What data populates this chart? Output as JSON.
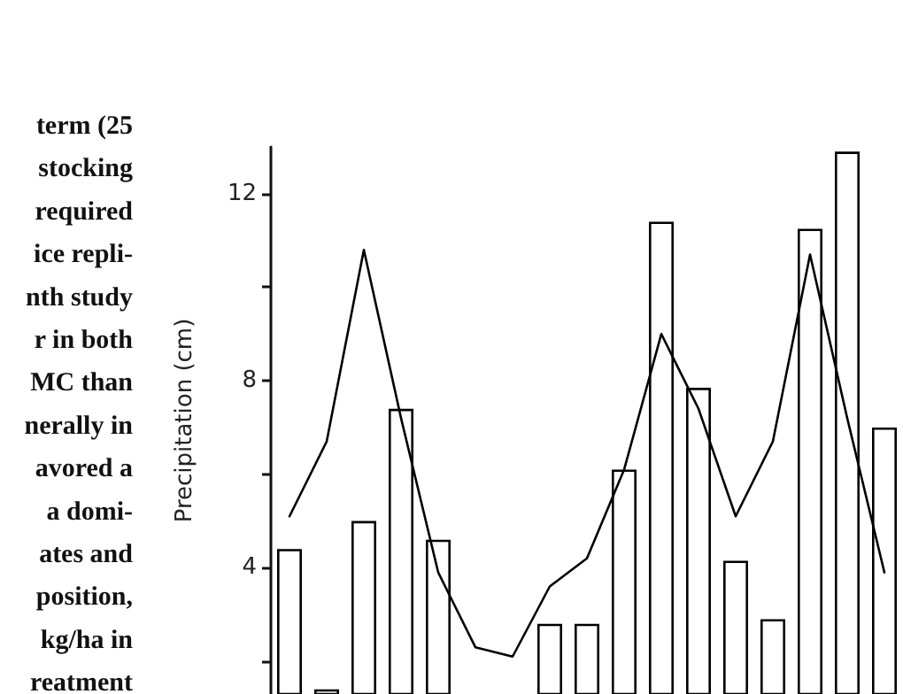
{
  "chart_data": {
    "type": "bar",
    "ylabel": "Precipitation (cm)",
    "categories": [
      null,
      null,
      null,
      null,
      null,
      null,
      null,
      null,
      null,
      null,
      null,
      null,
      null,
      null,
      null,
      null,
      null
    ],
    "series": [
      {
        "color": "#000000",
        "values": [
          4.4,
          1.4,
          5.0,
          7.4,
          4.6,
          null,
          null,
          2.8,
          2.8,
          6.1,
          11.4,
          7.85,
          4.15,
          2.9,
          11.25,
          12.9,
          7.0
        ]
      },
      {
        "type": "line",
        "color": "#000000",
        "values": [
          5.1,
          6.7,
          10.8,
          7.2,
          3.9,
          2.3,
          2.1,
          3.6,
          4.2,
          6.1,
          9.0,
          7.4,
          5.1,
          6.7,
          10.7,
          7.2,
          3.9
        ]
      }
    ],
    "ylim": [
      1.3,
      13
    ],
    "yticks": [
      {
        "value": 2,
        "label": null
      },
      4,
      {
        "value": 6,
        "label": null
      },
      8,
      {
        "value": 10,
        "label": null
      },
      12
    ],
    "tick_labels": "y",
    "grid": false,
    "marker": "none",
    "line_style": "solid",
    "annotations": [
      "term (25",
      "stocking",
      "required",
      "ice repli-",
      "nth study",
      "r in both",
      "MC than",
      "nerally in",
      "avored a",
      "a domi-",
      "ates and",
      "position,",
      "kg/ha in",
      "reatment"
    ]
  }
}
